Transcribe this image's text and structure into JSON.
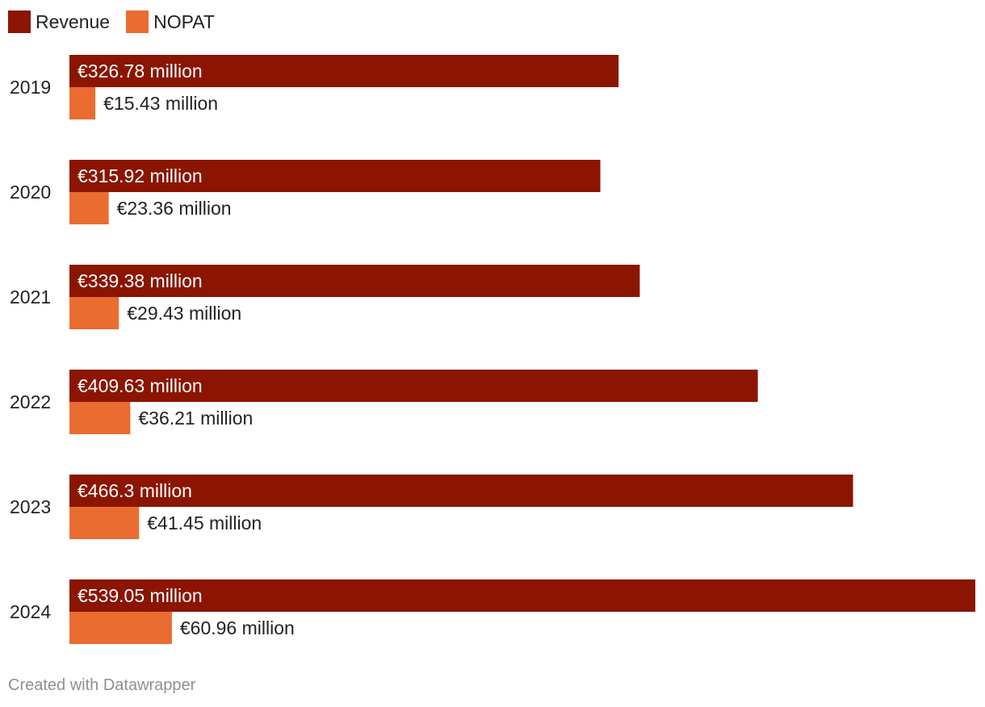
{
  "legend": [
    {
      "label": "Revenue",
      "color": "#8b1500"
    },
    {
      "label": "NOPAT",
      "color": "#ea6c31"
    }
  ],
  "chart_data": {
    "type": "bar",
    "orientation": "horizontal",
    "categories": [
      "2019",
      "2020",
      "2021",
      "2022",
      "2023",
      "2024"
    ],
    "series": [
      {
        "name": "Revenue",
        "color": "#8b1500",
        "values": [
          326.78,
          315.92,
          339.38,
          409.63,
          466.3,
          539.05
        ],
        "labels": [
          "€326.78 million",
          "€315.92 million",
          "€339.38 million",
          "€409.63 million",
          "€466.3 million",
          "€539.05 million"
        ],
        "label_position": "inside"
      },
      {
        "name": "NOPAT",
        "color": "#ea6c31",
        "values": [
          15.43,
          23.36,
          29.43,
          36.21,
          41.45,
          60.96
        ],
        "labels": [
          "€15.43 million",
          "€23.36 million",
          "€29.43 million",
          "€36.21 million",
          "€41.45 million",
          "€60.96 million"
        ],
        "label_position": "outside"
      }
    ],
    "xlim": [
      0,
      539.05
    ],
    "grid": false,
    "legend_position": "top-left"
  },
  "footer": {
    "credit": "Created with Datawrapper"
  }
}
